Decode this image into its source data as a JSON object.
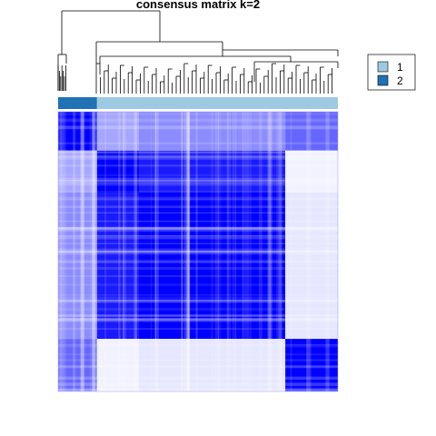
{
  "chart_data": {
    "type": "heatmap",
    "title": "consensus matrix k=2",
    "value_range": [
      0,
      1
    ],
    "color_low": "#ffffff",
    "color_high": "#0000ff",
    "annotation_colors": {
      "1": "#9ecae1",
      "2": "#2171b5"
    },
    "column_annotation": [
      "2",
      "1"
    ],
    "legend": [
      {
        "label": "1",
        "color": "#9ecae1"
      },
      {
        "label": "2",
        "color": "#2171b5"
      }
    ],
    "legend_position": "top-right",
    "dendrogram": "top",
    "block_values": [
      [
        1.0,
        0.35,
        0.45,
        0.6
      ],
      [
        0.35,
        1.0,
        0.9,
        0.05
      ],
      [
        0.45,
        0.9,
        1.0,
        0.1
      ],
      [
        0.6,
        0.05,
        0.1,
        1.0
      ]
    ]
  }
}
